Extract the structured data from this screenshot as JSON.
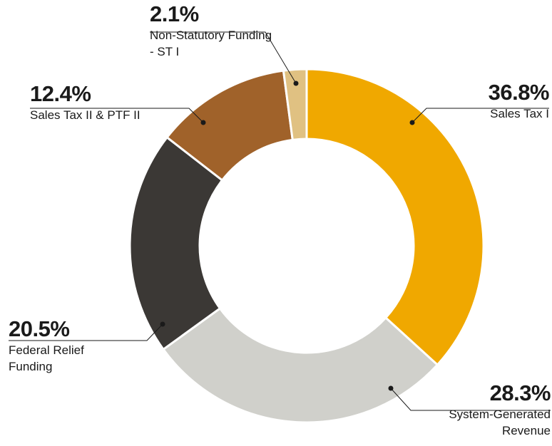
{
  "chart_data": {
    "type": "donut",
    "categories": [
      "Sales Tax I",
      "System-Generated Revenue",
      "Federal Relief Funding",
      "Sales Tax II & PTF II",
      "Non-Statutory Funding - ST I"
    ],
    "values": [
      36.8,
      28.3,
      20.5,
      12.4,
      2.1
    ],
    "value_labels": [
      "36.8%",
      "28.3%",
      "20.5%",
      "12.4%",
      "2.1%"
    ],
    "colors": [
      "#f0a800",
      "#d0d0cb",
      "#3b3835",
      "#a0622a",
      "#e0c182"
    ]
  }
}
